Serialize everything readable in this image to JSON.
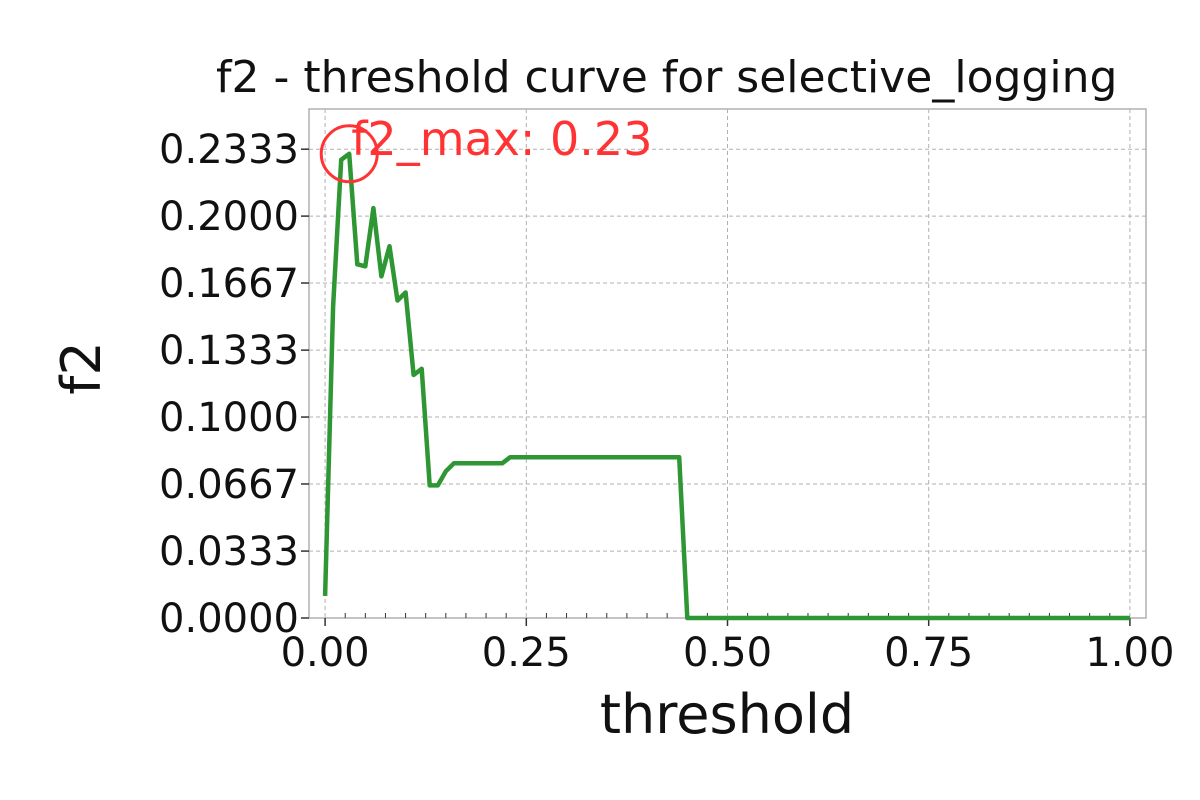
{
  "chart_data": {
    "type": "line",
    "title": "f2 - threshold curve for selective_logging",
    "xlabel": "threshold",
    "ylabel": "f2",
    "xlim": [
      -0.02,
      1.02
    ],
    "ylim": [
      0.0,
      0.2533
    ],
    "xticks": [
      0.0,
      0.25,
      0.5,
      0.75,
      1.0
    ],
    "xtick_labels": [
      "0.00",
      "0.25",
      "0.50",
      "0.75",
      "1.00"
    ],
    "yticks": [
      0.0,
      0.0333,
      0.0667,
      0.1,
      0.1333,
      0.1667,
      0.2,
      0.2333
    ],
    "ytick_labels": [
      "0.0000",
      "0.0333",
      "0.0667",
      "0.1000",
      "0.1333",
      "0.1667",
      "0.2000",
      "0.2333"
    ],
    "grid": true,
    "series": [
      {
        "name": "f2",
        "color": "#2e9632",
        "x": [
          0.0,
          0.01,
          0.02,
          0.03,
          0.04,
          0.05,
          0.06,
          0.07,
          0.08,
          0.09,
          0.1,
          0.11,
          0.12,
          0.13,
          0.14,
          0.15,
          0.16,
          0.17,
          0.18,
          0.19,
          0.2,
          0.21,
          0.22,
          0.23,
          0.24,
          0.25,
          0.3,
          0.35,
          0.4,
          0.44,
          0.45,
          0.46,
          0.5,
          0.6,
          0.7,
          0.8,
          0.9,
          1.0
        ],
        "y": [
          0.011,
          0.155,
          0.228,
          0.231,
          0.176,
          0.175,
          0.204,
          0.17,
          0.185,
          0.158,
          0.162,
          0.121,
          0.124,
          0.066,
          0.066,
          0.073,
          0.077,
          0.077,
          0.077,
          0.077,
          0.077,
          0.077,
          0.077,
          0.08,
          0.08,
          0.08,
          0.08,
          0.08,
          0.08,
          0.08,
          0.0,
          0.0,
          0.0,
          0.0,
          0.0,
          0.0,
          0.0,
          0.0
        ]
      }
    ],
    "annotation": {
      "text": "f2_max: 0.23",
      "x": 0.03,
      "y": 0.231,
      "color": "#ff3333"
    }
  }
}
